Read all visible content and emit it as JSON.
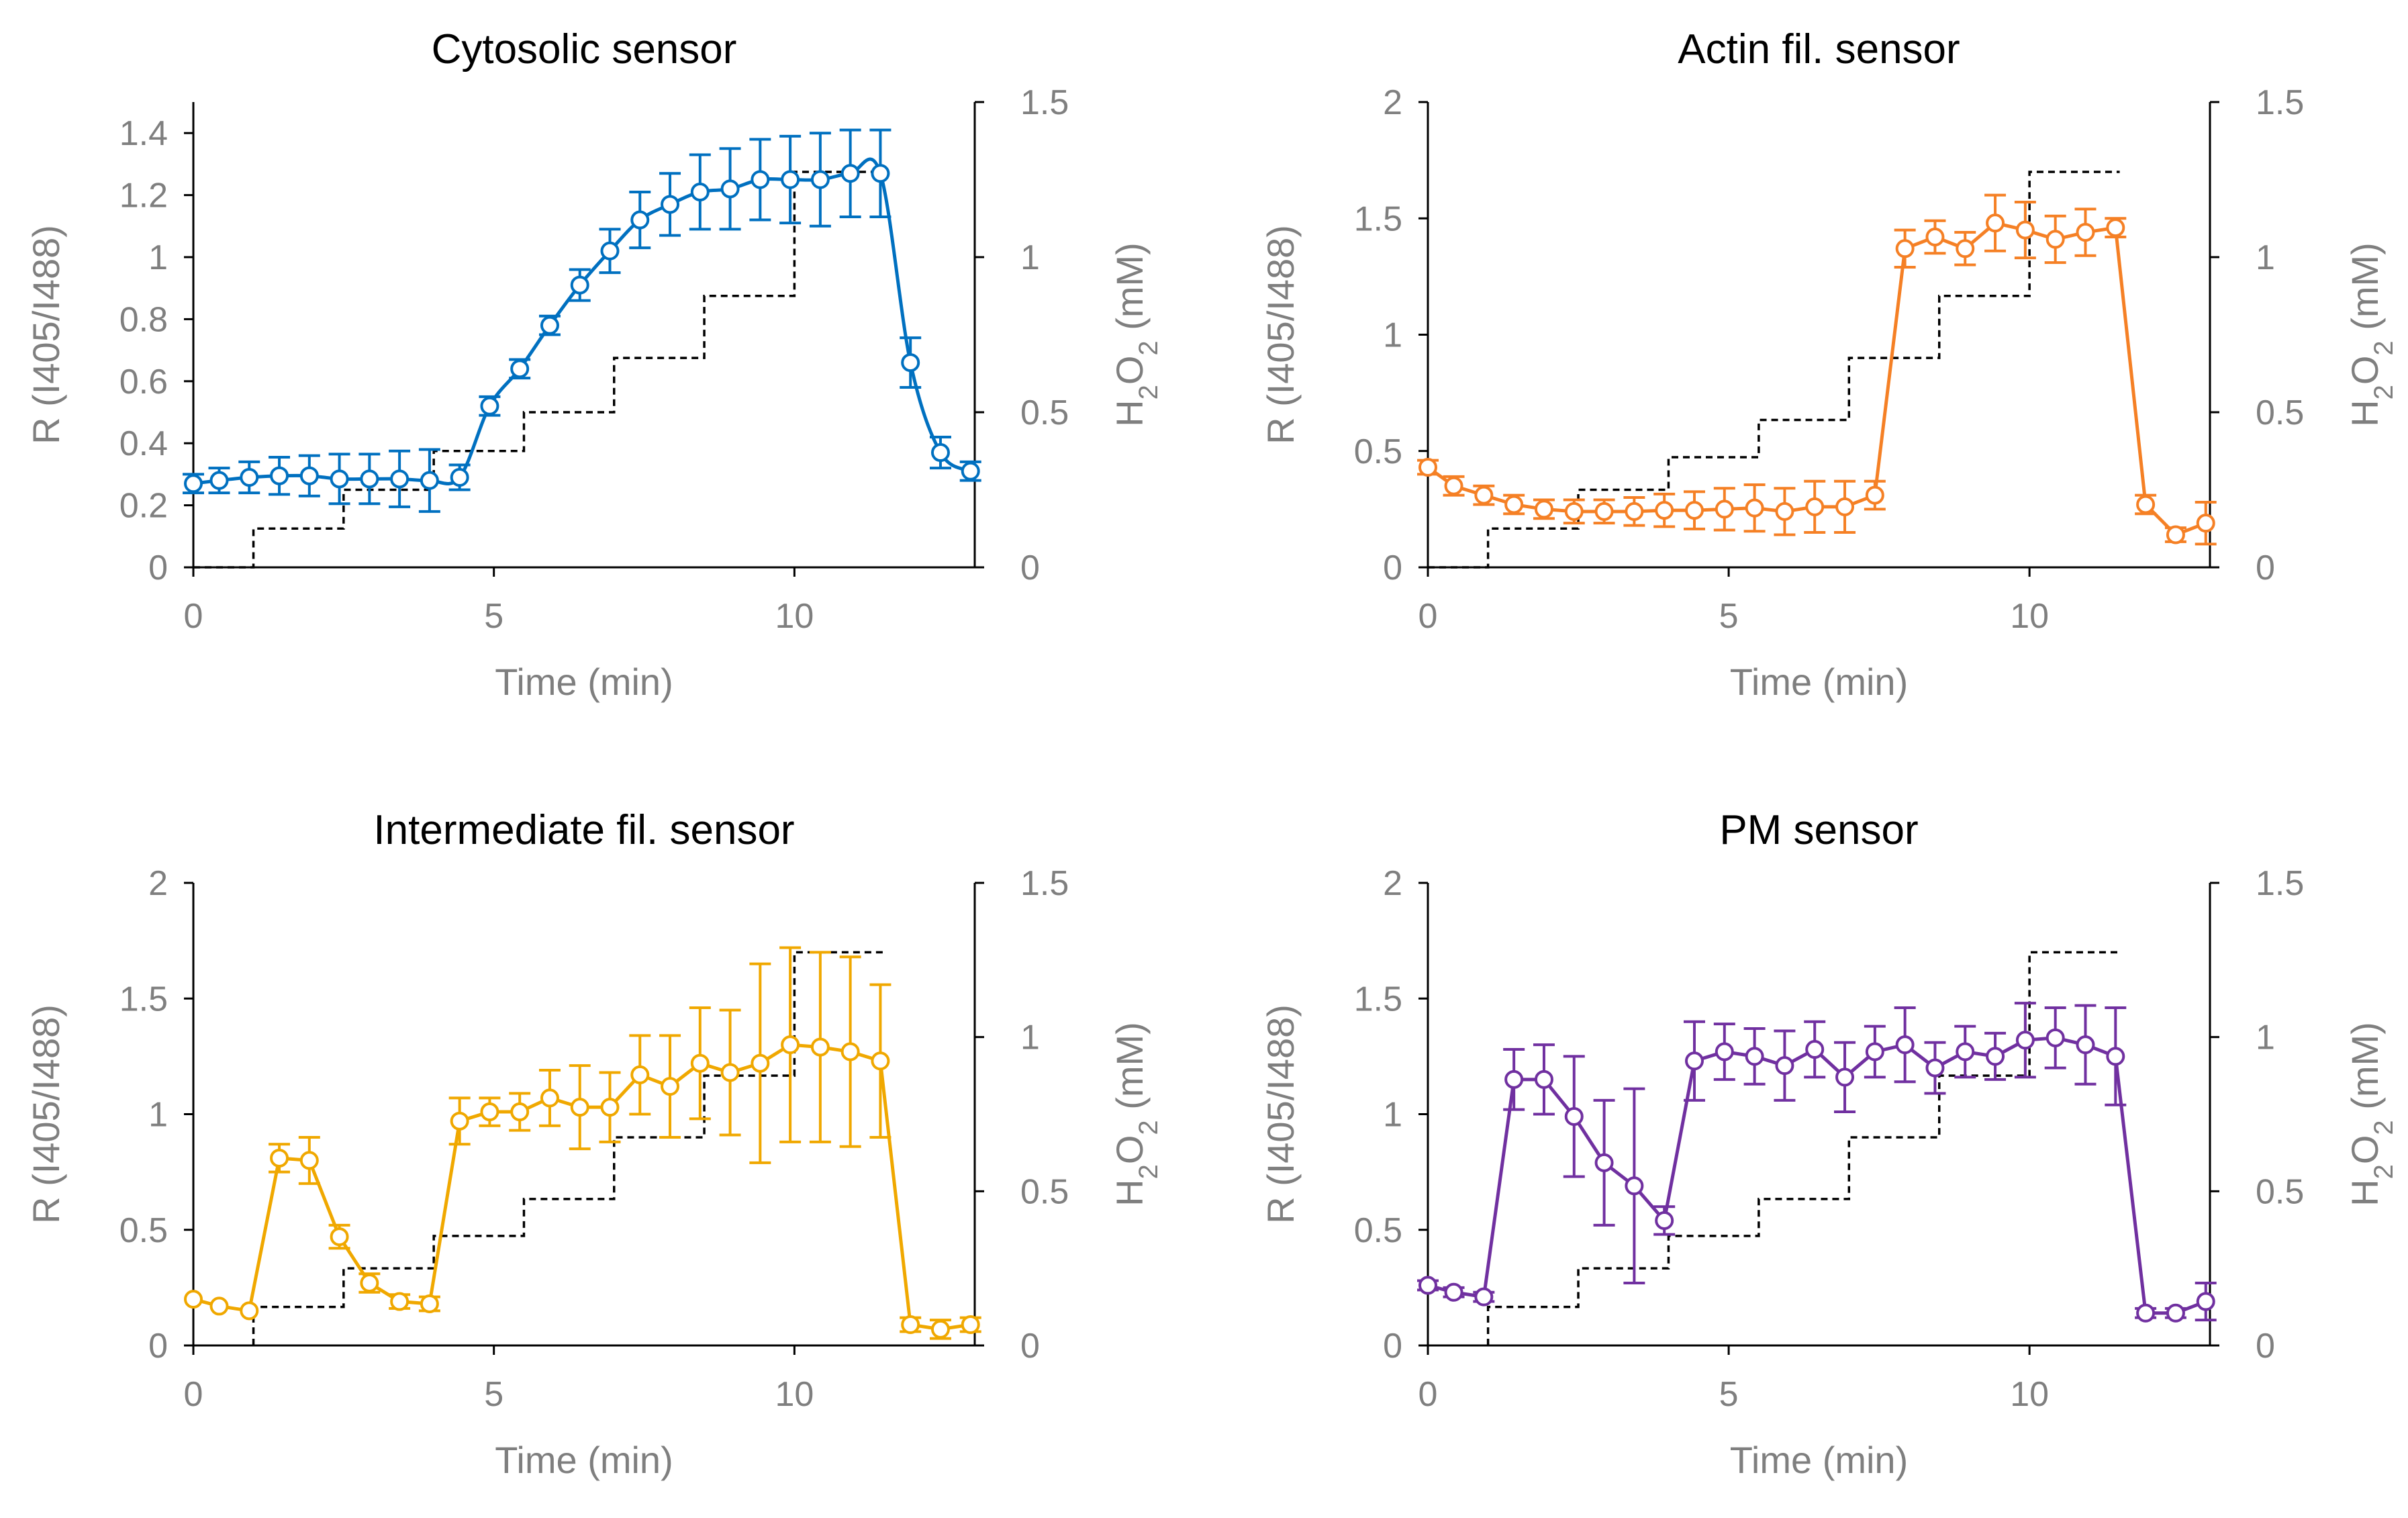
{
  "colors": {
    "cytosolic": "#0070C0",
    "actin": "#F58025",
    "intermediate": "#F0A800",
    "pm": "#7030A0",
    "dashed": "#000000",
    "axis_text": "#7f7f7f"
  },
  "chart_data": [
    {
      "id": "cyto",
      "type": "line",
      "title": "Cytosolic sensor",
      "xlabel": "Time (min)",
      "ylabel": "R (I405/I488)",
      "y2label": "H2O2 (mM)",
      "xlim": [
        0,
        13
      ],
      "ylim": [
        0,
        1.5
      ],
      "y2lim": [
        0,
        1.5
      ],
      "xticks": [
        0,
        5,
        10
      ],
      "xtick_labels": [
        "0",
        "5",
        "10"
      ],
      "yticks": [
        0,
        0.2,
        0.4,
        0.6,
        0.8,
        1,
        1.2,
        1.4
      ],
      "ytick_labels": [
        "0",
        "0.2",
        "0.4",
        "0.6",
        "0.8",
        "1",
        "1.2",
        "1.4"
      ],
      "y2ticks": [
        0,
        0.5,
        1,
        1.5
      ],
      "y2tick_labels": [
        "0",
        "0.5",
        "1",
        "1.5"
      ],
      "smooth": true,
      "series": [
        {
          "name": "Cytosolic sensor",
          "color": "#0070C0",
          "x": [
            0,
            0.43,
            0.93,
            1.43,
            1.93,
            2.43,
            2.93,
            3.43,
            3.93,
            4.43,
            4.93,
            5.43,
            5.93,
            6.43,
            6.93,
            7.43,
            7.93,
            8.43,
            8.93,
            9.43,
            9.93,
            10.43,
            10.93,
            11.43,
            11.93,
            12.43,
            12.93
          ],
          "y": [
            0.27,
            0.28,
            0.29,
            0.295,
            0.295,
            0.285,
            0.285,
            0.285,
            0.28,
            0.29,
            0.52,
            0.64,
            0.78,
            0.91,
            1.02,
            1.12,
            1.17,
            1.21,
            1.22,
            1.25,
            1.25,
            1.25,
            1.27,
            1.27,
            0.66,
            0.37,
            0.31
          ],
          "err": [
            0.03,
            0.04,
            0.05,
            0.06,
            0.065,
            0.08,
            0.08,
            0.09,
            0.1,
            0.04,
            0.03,
            0.03,
            0.03,
            0.05,
            0.07,
            0.09,
            0.1,
            0.12,
            0.13,
            0.13,
            0.14,
            0.15,
            0.14,
            0.14,
            0.08,
            0.05,
            0.03
          ]
        }
      ],
      "h2o2_steps": {
        "x": [
          0,
          1,
          1,
          2.5,
          2.5,
          4,
          4,
          5.5,
          5.5,
          7,
          7,
          8.5,
          8.5,
          10,
          10,
          11.5
        ],
        "y": [
          0,
          0,
          0.125,
          0.125,
          0.25,
          0.25,
          0.375,
          0.375,
          0.5,
          0.5,
          0.675,
          0.675,
          0.875,
          0.875,
          1.275,
          1.275
        ]
      }
    },
    {
      "id": "actin",
      "type": "line",
      "title": "Actin fil. sensor",
      "xlabel": "Time (min)",
      "ylabel": "R (I405/I488)",
      "y2label": "H2O2 (mM)",
      "xlim": [
        0,
        13
      ],
      "ylim": [
        0,
        2
      ],
      "y2lim": [
        0,
        1.5
      ],
      "xticks": [
        0,
        5,
        10
      ],
      "xtick_labels": [
        "0",
        "5",
        "10"
      ],
      "yticks": [
        0,
        0.5,
        1,
        1.5,
        2
      ],
      "ytick_labels": [
        "0",
        "0.5",
        "1",
        "1.5",
        "2"
      ],
      "y2ticks": [
        0,
        0.5,
        1,
        1.5
      ],
      "y2tick_labels": [
        "0",
        "0.5",
        "1",
        "1.5"
      ],
      "smooth": false,
      "series": [
        {
          "name": "Actin fil. sensor",
          "color": "#F58025",
          "x": [
            0,
            0.43,
            0.93,
            1.43,
            1.93,
            2.43,
            2.93,
            3.43,
            3.93,
            4.43,
            4.93,
            5.43,
            5.93,
            6.43,
            6.93,
            7.43,
            7.93,
            8.43,
            8.93,
            9.43,
            9.93,
            10.43,
            10.93,
            11.43,
            11.93,
            12.43,
            12.93
          ],
          "y": [
            0.43,
            0.35,
            0.31,
            0.27,
            0.25,
            0.24,
            0.24,
            0.24,
            0.245,
            0.245,
            0.25,
            0.255,
            0.24,
            0.26,
            0.26,
            0.31,
            1.37,
            1.42,
            1.37,
            1.48,
            1.45,
            1.41,
            1.44,
            1.46,
            0.27,
            0.14,
            0.19
          ],
          "err": [
            0.03,
            0.04,
            0.04,
            0.04,
            0.04,
            0.05,
            0.05,
            0.06,
            0.07,
            0.08,
            0.09,
            0.1,
            0.1,
            0.11,
            0.11,
            0.06,
            0.08,
            0.07,
            0.07,
            0.12,
            0.12,
            0.1,
            0.1,
            0.04,
            0.04,
            0.03,
            0.09
          ]
        }
      ],
      "h2o2_steps": {
        "x": [
          0,
          1,
          1,
          2.5,
          2.5,
          4,
          4,
          5.5,
          5.5,
          7,
          7,
          8.5,
          8.5,
          10,
          10,
          11.5
        ],
        "y": [
          0,
          0,
          0.125,
          0.125,
          0.25,
          0.25,
          0.355,
          0.355,
          0.475,
          0.475,
          0.675,
          0.675,
          0.875,
          0.875,
          1.275,
          1.275
        ]
      }
    },
    {
      "id": "inter",
      "type": "line",
      "title": "Intermediate fil. sensor",
      "xlabel": "Time (min)",
      "ylabel": "R (I405/I488)",
      "y2label": "H2O2 (mM)",
      "xlim": [
        0,
        13
      ],
      "ylim": [
        0,
        2
      ],
      "y2lim": [
        0,
        1.5
      ],
      "xticks": [
        0,
        5,
        10
      ],
      "xtick_labels": [
        "0",
        "5",
        "10"
      ],
      "yticks": [
        0,
        0.5,
        1,
        1.5,
        2
      ],
      "ytick_labels": [
        "0",
        "0.5",
        "1",
        "1.5",
        "2"
      ],
      "y2ticks": [
        0,
        0.5,
        1,
        1.5
      ],
      "y2tick_labels": [
        "0",
        "0.5",
        "1",
        "1.5"
      ],
      "smooth": false,
      "series": [
        {
          "name": "Intermediate fil. sensor",
          "color": "#F0A800",
          "x": [
            0,
            0.43,
            0.93,
            1.43,
            1.93,
            2.43,
            2.93,
            3.43,
            3.93,
            4.43,
            4.93,
            5.43,
            5.93,
            6.43,
            6.93,
            7.43,
            7.93,
            8.43,
            8.93,
            9.43,
            9.93,
            10.43,
            10.93,
            11.43,
            11.93,
            12.43,
            12.93
          ],
          "y": [
            0.2,
            0.17,
            0.15,
            0.81,
            0.8,
            0.47,
            0.27,
            0.19,
            0.18,
            0.97,
            1.01,
            1.01,
            1.07,
            1.03,
            1.03,
            1.17,
            1.12,
            1.22,
            1.18,
            1.22,
            1.3,
            1.29,
            1.27,
            1.23,
            0.09,
            0.07,
            0.09
          ],
          "err": [
            0,
            0,
            0,
            0.06,
            0.1,
            0.05,
            0.04,
            0.03,
            0.03,
            0.1,
            0.06,
            0.08,
            0.12,
            0.18,
            0.15,
            0.17,
            0.22,
            0.24,
            0.27,
            0.43,
            0.42,
            0.41,
            0.41,
            0.33,
            0.03,
            0.04,
            0.03
          ]
        }
      ],
      "h2o2_steps": {
        "x": [
          1,
          1,
          2.5,
          2.5,
          4,
          4,
          5.5,
          5.5,
          7,
          7,
          8.5,
          8.5,
          10,
          10,
          11.5
        ],
        "y": [
          0,
          0.125,
          0.125,
          0.25,
          0.25,
          0.355,
          0.355,
          0.475,
          0.475,
          0.675,
          0.675,
          0.875,
          0.875,
          1.275,
          1.275
        ]
      }
    },
    {
      "id": "pm",
      "type": "line",
      "title": "PM sensor",
      "xlabel": "Time (min)",
      "ylabel": "R (I405/I488)",
      "y2label": "H2O2 (mM)",
      "xlim": [
        0,
        13
      ],
      "ylim": [
        0,
        2
      ],
      "y2lim": [
        0,
        1.5
      ],
      "xticks": [
        0,
        5,
        10
      ],
      "xtick_labels": [
        "0",
        "5",
        "10"
      ],
      "yticks": [
        0,
        0.5,
        1,
        1.5,
        2
      ],
      "ytick_labels": [
        "0",
        "0.5",
        "1",
        "1.5",
        "2"
      ],
      "y2ticks": [
        0,
        0.5,
        1,
        1.5
      ],
      "y2tick_labels": [
        "0",
        "0.5",
        "1",
        "1.5"
      ],
      "smooth": false,
      "series": [
        {
          "name": "PM sensor",
          "color": "#7030A0",
          "x": [
            0,
            0.43,
            0.93,
            1.43,
            1.93,
            2.43,
            2.93,
            3.43,
            3.93,
            4.43,
            4.93,
            5.43,
            5.93,
            6.43,
            6.93,
            7.43,
            7.93,
            8.43,
            8.93,
            9.43,
            9.93,
            10.43,
            10.93,
            11.43,
            11.93,
            12.43,
            12.93
          ],
          "y": [
            0.26,
            0.23,
            0.21,
            1.15,
            1.15,
            0.99,
            0.79,
            0.69,
            0.54,
            1.23,
            1.27,
            1.25,
            1.21,
            1.28,
            1.16,
            1.27,
            1.3,
            1.2,
            1.27,
            1.25,
            1.32,
            1.33,
            1.3,
            1.25,
            0.14,
            0.14,
            0.19
          ],
          "err": [
            0.02,
            0.02,
            0.02,
            0.13,
            0.15,
            0.26,
            0.27,
            0.42,
            0.06,
            0.17,
            0.12,
            0.12,
            0.15,
            0.12,
            0.15,
            0.11,
            0.16,
            0.11,
            0.11,
            0.1,
            0.16,
            0.13,
            0.17,
            0.21,
            0.02,
            0.02,
            0.08
          ]
        }
      ],
      "h2o2_steps": {
        "x": [
          1,
          1,
          2.5,
          2.5,
          4,
          4,
          5.5,
          5.5,
          7,
          7,
          8.5,
          8.5,
          10,
          10,
          11.5
        ],
        "y": [
          0,
          0.125,
          0.125,
          0.25,
          0.25,
          0.355,
          0.355,
          0.475,
          0.475,
          0.675,
          0.675,
          0.875,
          0.875,
          1.275,
          1.275
        ]
      }
    }
  ]
}
